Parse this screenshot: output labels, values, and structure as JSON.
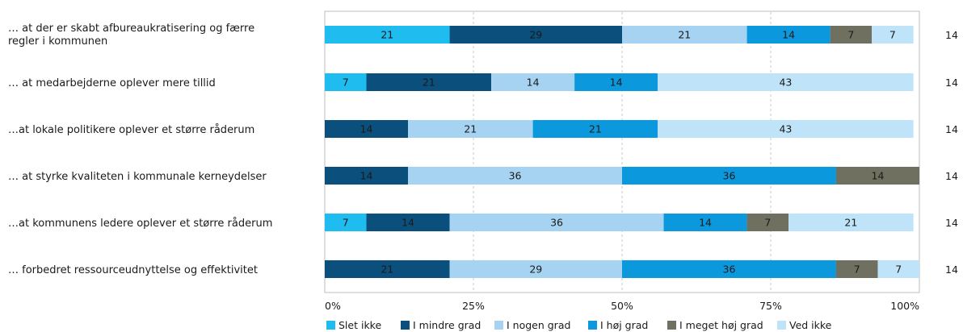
{
  "chart_data": {
    "type": "bar",
    "orientation": "horizontal",
    "stacked": true,
    "categories": [
      "… at der er skabt afbureaukratisering og færre regler i kommunen",
      "… at medarbejderne oplever mere tillid",
      "…at lokale politikere oplever et større råderum",
      "… at styrke kvaliteten i kommunale kerneydelser",
      "…at kommunens ledere oplever et større råderum",
      "… forbedret ressourceudnyttelse og effektivitet"
    ],
    "series": [
      {
        "name": "Slet ikke",
        "color": "#1fbcef",
        "label_color": "#1a1a1a",
        "values": [
          21,
          7,
          0,
          0,
          7,
          0
        ]
      },
      {
        "name": "I mindre grad",
        "color": "#0b4f7c",
        "label_color": "#1a1a1a",
        "values": [
          29,
          21,
          14,
          14,
          14,
          21
        ]
      },
      {
        "name": "I nogen grad",
        "color": "#a7d3f3",
        "label_color": "#1a1a1a",
        "values": [
          21,
          14,
          21,
          36,
          36,
          29
        ]
      },
      {
        "name": "I høj grad",
        "color": "#0c98dd",
        "label_color": "#1a1a1a",
        "values": [
          14,
          14,
          21,
          36,
          14,
          36
        ]
      },
      {
        "name": "I meget høj grad",
        "color": "#6f7060",
        "label_color": "#1a1a1a",
        "values": [
          7,
          0,
          0,
          14,
          7,
          7
        ]
      },
      {
        "name": "Ved ikke",
        "color": "#bfe3f8",
        "label_color": "#1a1a1a",
        "values": [
          7,
          43,
          43,
          0,
          21,
          7
        ]
      }
    ],
    "n": [
      14,
      14,
      14,
      14,
      14,
      14
    ],
    "xticks": [
      "0%",
      "25%",
      "50%",
      "75%",
      "100%"
    ],
    "xlim": [
      0,
      100
    ],
    "grid": "vertical dashed",
    "legend_position": "bottom"
  }
}
